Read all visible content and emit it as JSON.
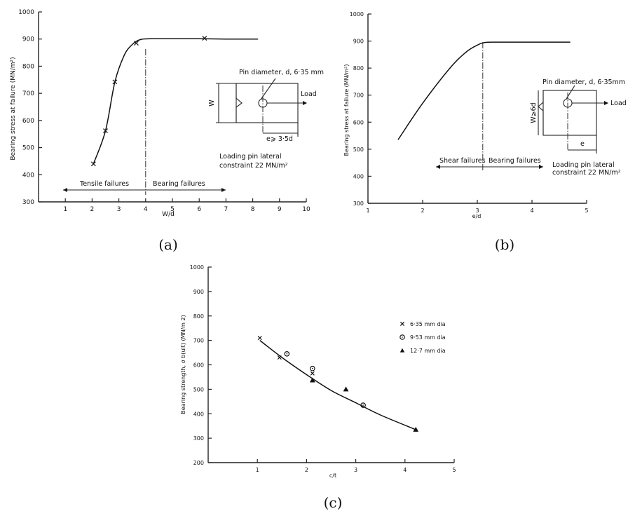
{
  "chart_data": [
    {
      "type": "line",
      "caption": "(a)",
      "xlabel": "W/d",
      "ylabel": "Bearing stress at failure (MN/m²)",
      "xlim": [
        0,
        10
      ],
      "ylim": [
        300,
        1000
      ],
      "xticks": [
        "1",
        "2",
        "3",
        "4",
        "5",
        "6",
        "7",
        "8",
        "9",
        "10"
      ],
      "yticks": [
        "300",
        "400",
        "500",
        "600",
        "700",
        "800",
        "900",
        "1000"
      ],
      "points": {
        "x": [
          2.05,
          2.5,
          2.85,
          3.65,
          6.2
        ],
        "y": [
          440,
          562,
          742,
          885,
          903
        ]
      },
      "curve": {
        "x": [
          2.05,
          2.5,
          2.85,
          3.2,
          3.5,
          3.8,
          4.2,
          5,
          6,
          7,
          8.2
        ],
        "y": [
          440,
          562,
          742,
          840,
          880,
          898,
          901,
          901,
          901,
          900,
          900
        ]
      },
      "divider_x": 4,
      "regions": [
        "Tensile failures",
        "Bearing failures"
      ],
      "inset": {
        "pin": "Pin diameter, d, 6·35 mm",
        "load": "Load",
        "width": "W",
        "edge": "e⩾ 3·5d"
      },
      "note": [
        "Loading pin lateral",
        "constraint 22 MN/m²"
      ]
    },
    {
      "type": "line",
      "caption": "(b)",
      "xlabel": "e/d",
      "ylabel": "Bearing stress at failure (MN/m²)",
      "xlim": [
        1,
        5
      ],
      "ylim": [
        300,
        1000
      ],
      "xticks": [
        "1",
        "2",
        "3",
        "4",
        "5"
      ],
      "yticks": [
        "300",
        "400",
        "500",
        "600",
        "700",
        "800",
        "900",
        "1000"
      ],
      "curve": {
        "x": [
          1.55,
          2.0,
          2.5,
          2.8,
          3.0,
          3.15,
          3.4,
          4.0,
          4.7
        ],
        "y": [
          535,
          670,
          800,
          860,
          885,
          895,
          896,
          896,
          896
        ]
      },
      "divider_x": 3.1,
      "regions": [
        "Shear failures",
        "Bearing failures"
      ],
      "inset": {
        "pin": "Pin diameter, d, 6·35mm",
        "load": "Load",
        "width": "W⩾6d",
        "edge": "e"
      },
      "note": [
        "Loading pin lateral",
        "constraint 22 MN/m²"
      ]
    },
    {
      "type": "scatter",
      "caption": "(c)",
      "xlabel": "c/t",
      "ylabel": "Bearing strength, σ b(ult) (MN/m 2)",
      "xlim": [
        0,
        5
      ],
      "ylim": [
        200,
        1000
      ],
      "xticks": [
        "1",
        "2",
        "3",
        "4",
        "5"
      ],
      "yticks": [
        "200",
        "300",
        "400",
        "500",
        "600",
        "700",
        "800",
        "900",
        "1000"
      ],
      "series": [
        {
          "name": "6·35 mm dia",
          "marker": "x",
          "x": [
            1.05,
            1.45,
            2.12
          ],
          "y": [
            710,
            630,
            565
          ]
        },
        {
          "name": "9·53 mm dia",
          "marker": "circle",
          "x": [
            1.6,
            2.12,
            3.15
          ],
          "y": [
            645,
            585,
            435
          ]
        },
        {
          "name": "12·7  mm dia",
          "marker": "triangle",
          "x": [
            2.12,
            2.8,
            4.22
          ],
          "y": [
            537,
            500,
            335
          ]
        }
      ],
      "curve": {
        "x": [
          1.05,
          1.5,
          2.0,
          2.5,
          3.0,
          3.5,
          4.22
        ],
        "y": [
          700,
          630,
          560,
          495,
          445,
          395,
          335
        ]
      },
      "legend_position": "right"
    }
  ]
}
